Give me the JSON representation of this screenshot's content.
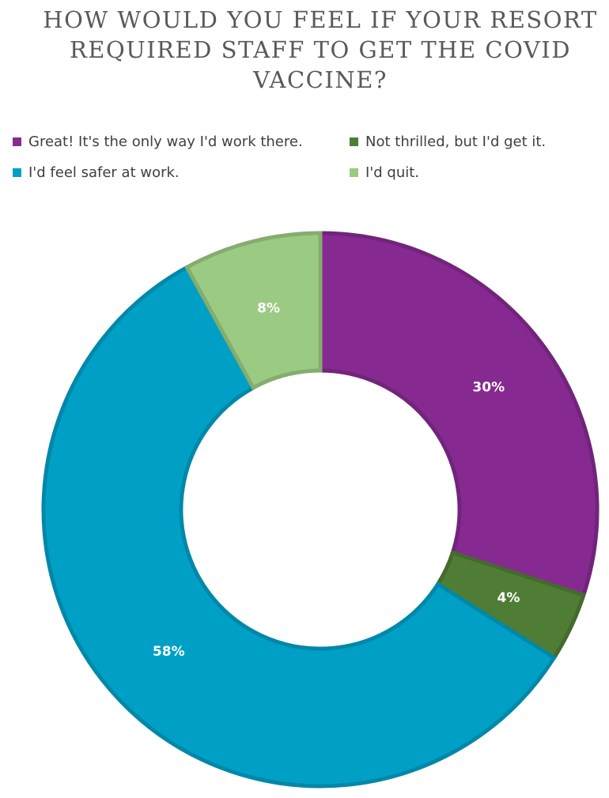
{
  "chart_data": {
    "type": "pie",
    "title": "HOW WOULD YOU FEEL IF YOUR RESORT REQUIRED STAFF TO GET THE COVID VACCINE?",
    "categories": [
      "Great! It's the only way I'd work there.",
      "Not thrilled, but I'd get it.",
      "I'd feel safer at work.",
      "I'd quit."
    ],
    "values": [
      30,
      4,
      58,
      8
    ],
    "value_labels": [
      "30%",
      "4%",
      "58%",
      "8%"
    ],
    "colors": [
      "#862a91",
      "#507d36",
      "#00a0c6",
      "#9bcb82"
    ],
    "legend_position": "top"
  }
}
